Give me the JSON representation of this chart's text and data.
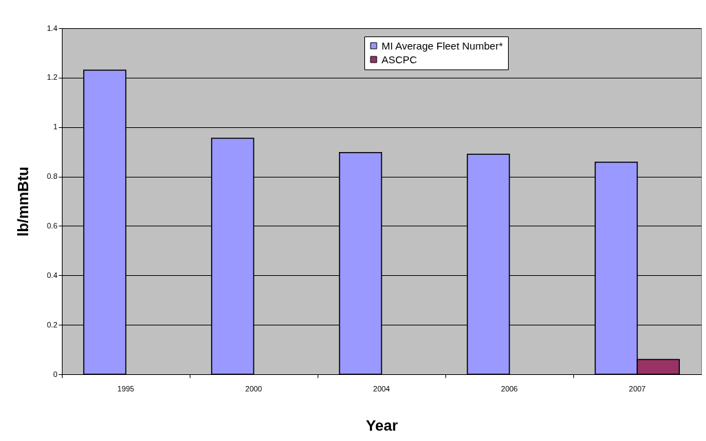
{
  "chart_data": {
    "type": "bar",
    "xlabel": "Year",
    "ylabel": "lb/mmBtu",
    "categories": [
      "1995",
      "2000",
      "2004",
      "2006",
      "2007"
    ],
    "series": [
      {
        "name": "MI Average Fleet Number*",
        "color": "#9999ff",
        "values": [
          1.23,
          0.955,
          0.897,
          0.89,
          0.858
        ]
      },
      {
        "name": "ASCPC",
        "color": "#993366",
        "values": [
          null,
          null,
          null,
          null,
          0.06
        ]
      }
    ],
    "ylim": [
      0,
      1.4
    ],
    "yticks": [
      0,
      0.2,
      0.4,
      0.6,
      0.8,
      1,
      1.2,
      1.4
    ],
    "grid": "y",
    "legend": "top"
  }
}
